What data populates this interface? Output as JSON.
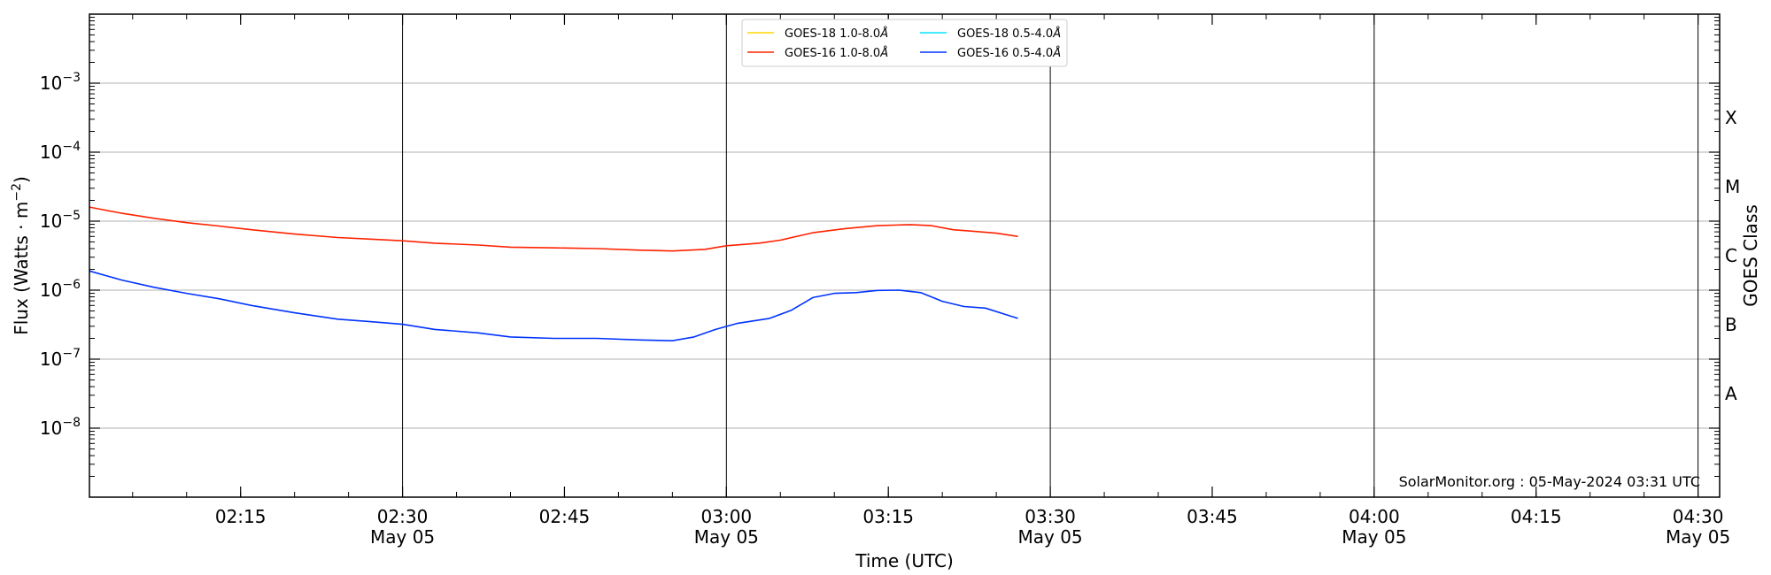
{
  "chart_data": {
    "type": "line",
    "xlabel": "Time (UTC)",
    "ylabel": "Flux (Watts · m",
    "ylabel_sup": "−2",
    "ylabel_close": ")",
    "y2label": "GOES Class",
    "credit": "SolarMonitor.org : 05-May-2024 03:31 UTC",
    "y_scale": "log",
    "ylim": [
      1e-09,
      0.01
    ],
    "xlim": [
      "02:01",
      "04:32"
    ],
    "grid": "horizontal",
    "legend_position": "top-center",
    "x_ticks": [
      {
        "time": "02:15",
        "label": "02:15",
        "date": ""
      },
      {
        "time": "02:30",
        "label": "02:30",
        "date": "May 05"
      },
      {
        "time": "02:45",
        "label": "02:45",
        "date": ""
      },
      {
        "time": "03:00",
        "label": "03:00",
        "date": "May 05"
      },
      {
        "time": "03:15",
        "label": "03:15",
        "date": ""
      },
      {
        "time": "03:30",
        "label": "03:30",
        "date": "May 05"
      },
      {
        "time": "03:45",
        "label": "03:45",
        "date": ""
      },
      {
        "time": "04:00",
        "label": "04:00",
        "date": "May 05"
      },
      {
        "time": "04:15",
        "label": "04:15",
        "date": ""
      },
      {
        "time": "04:30",
        "label": "04:30",
        "date": "May 05"
      }
    ],
    "day_lines": [
      "02:30",
      "03:00",
      "03:30",
      "04:00",
      "04:30"
    ],
    "y_ticks": [
      {
        "value": 0.001,
        "base": "10",
        "exp": "−3"
      },
      {
        "value": 0.0001,
        "base": "10",
        "exp": "−4"
      },
      {
        "value": 1e-05,
        "base": "10",
        "exp": "−5"
      },
      {
        "value": 1e-06,
        "base": "10",
        "exp": "−6"
      },
      {
        "value": 1e-07,
        "base": "10",
        "exp": "−7"
      },
      {
        "value": 1e-08,
        "base": "10",
        "exp": "−8"
      }
    ],
    "goes_classes": [
      {
        "label": "X",
        "value": 0.000316
      },
      {
        "label": "M",
        "value": 3.16e-05
      },
      {
        "label": "C",
        "value": 3.16e-06
      },
      {
        "label": "B",
        "value": 3.16e-07
      },
      {
        "label": "A",
        "value": 3.16e-08
      }
    ],
    "series": [
      {
        "name": "GOES-18 1.0-8.0",
        "unit_symbol": "Å",
        "color": "#ffd700",
        "x": [],
        "y": []
      },
      {
        "name": "GOES-18 0.5-4.0",
        "unit_symbol": "Å",
        "color": "#00e5ff",
        "x": [],
        "y": []
      },
      {
        "name": "GOES-16 1.0-8.0",
        "unit_symbol": "Å",
        "color": "#ff2200",
        "x": [
          "02:01",
          "02:04",
          "02:07",
          "02:10",
          "02:13",
          "02:16",
          "02:20",
          "02:24",
          "02:27",
          "02:30",
          "02:33",
          "02:37",
          "02:40",
          "02:44",
          "02:48",
          "02:52",
          "02:55",
          "02:58",
          "03:00",
          "03:03",
          "03:05",
          "03:08",
          "03:11",
          "03:14",
          "03:17",
          "03:19",
          "03:21",
          "03:23",
          "03:25",
          "03:27"
        ],
        "y": [
          1.6e-05,
          1.3e-05,
          1.1e-05,
          9.5e-06,
          8.5e-06,
          7.5e-06,
          6.5e-06,
          5.8e-06,
          5.5e-06,
          5.2e-06,
          4.8e-06,
          4.5e-06,
          4.2e-06,
          4.1e-06,
          4e-06,
          3.8e-06,
          3.7e-06,
          3.9e-06,
          4.4e-06,
          4.8e-06,
          5.3e-06,
          6.8e-06,
          7.8e-06,
          8.6e-06,
          8.9e-06,
          8.6e-06,
          7.5e-06,
          7.1e-06,
          6.7e-06,
          6e-06
        ]
      },
      {
        "name": "GOES-16 0.5-4.0",
        "unit_symbol": "Å",
        "color": "#0033ff",
        "x": [
          "02:01",
          "02:04",
          "02:07",
          "02:10",
          "02:13",
          "02:16",
          "02:20",
          "02:24",
          "02:27",
          "02:30",
          "02:33",
          "02:37",
          "02:40",
          "02:44",
          "02:48",
          "02:52",
          "02:55",
          "02:57",
          "02:59",
          "03:01",
          "03:04",
          "03:06",
          "03:08",
          "03:10",
          "03:12",
          "03:14",
          "03:16",
          "03:18",
          "03:20",
          "03:22",
          "03:24",
          "03:27"
        ],
        "y": [
          1.9e-06,
          1.4e-06,
          1.1e-06,
          9e-07,
          7.5e-07,
          6e-07,
          4.7e-07,
          3.8e-07,
          3.5e-07,
          3.2e-07,
          2.7e-07,
          2.4e-07,
          2.1e-07,
          2e-07,
          2e-07,
          1.9e-07,
          1.85e-07,
          2.1e-07,
          2.7e-07,
          3.3e-07,
          3.9e-07,
          5.1e-07,
          7.8e-07,
          9e-07,
          9.2e-07,
          9.9e-07,
          1e-06,
          9.2e-07,
          6.9e-07,
          5.8e-07,
          5.5e-07,
          3.9e-07
        ]
      }
    ]
  }
}
